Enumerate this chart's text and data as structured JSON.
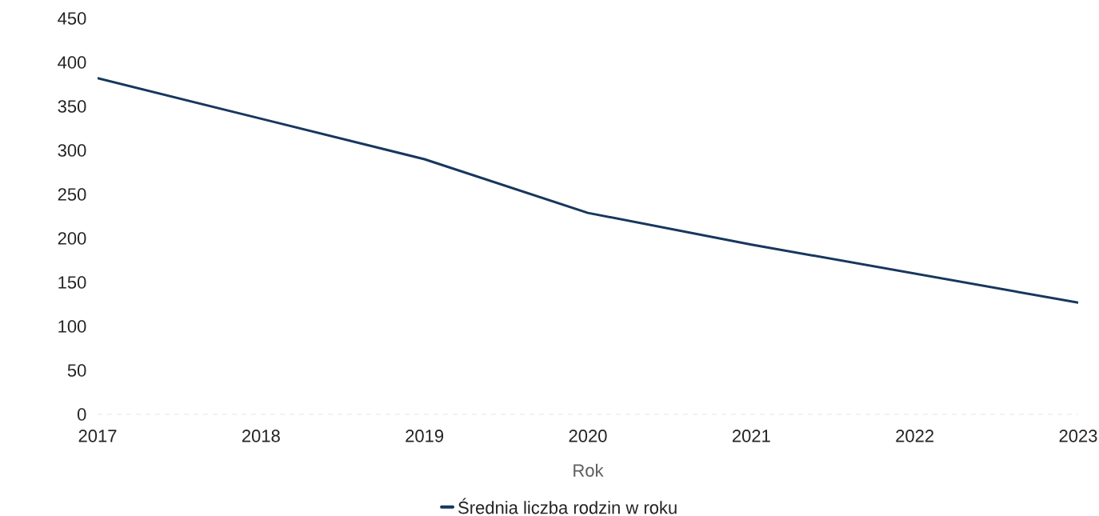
{
  "chart_data": {
    "type": "line",
    "xlabel": "Rok",
    "x": [
      2017,
      2018,
      2019,
      2020,
      2021,
      2022,
      2023
    ],
    "series": [
      {
        "name": "Średnia liczba rodzin w roku",
        "color": "#17375e",
        "values": [
          382,
          336,
          290,
          229,
          193,
          160,
          127
        ]
      }
    ],
    "xlim": [
      2017,
      2023
    ],
    "xticks": [
      2017,
      2018,
      2019,
      2020,
      2021,
      2022,
      2023
    ],
    "ylim": [
      0,
      450
    ],
    "yticks": [
      0,
      50,
      100,
      150,
      200,
      250,
      300,
      350,
      400,
      450
    ],
    "legend": "bottom"
  }
}
